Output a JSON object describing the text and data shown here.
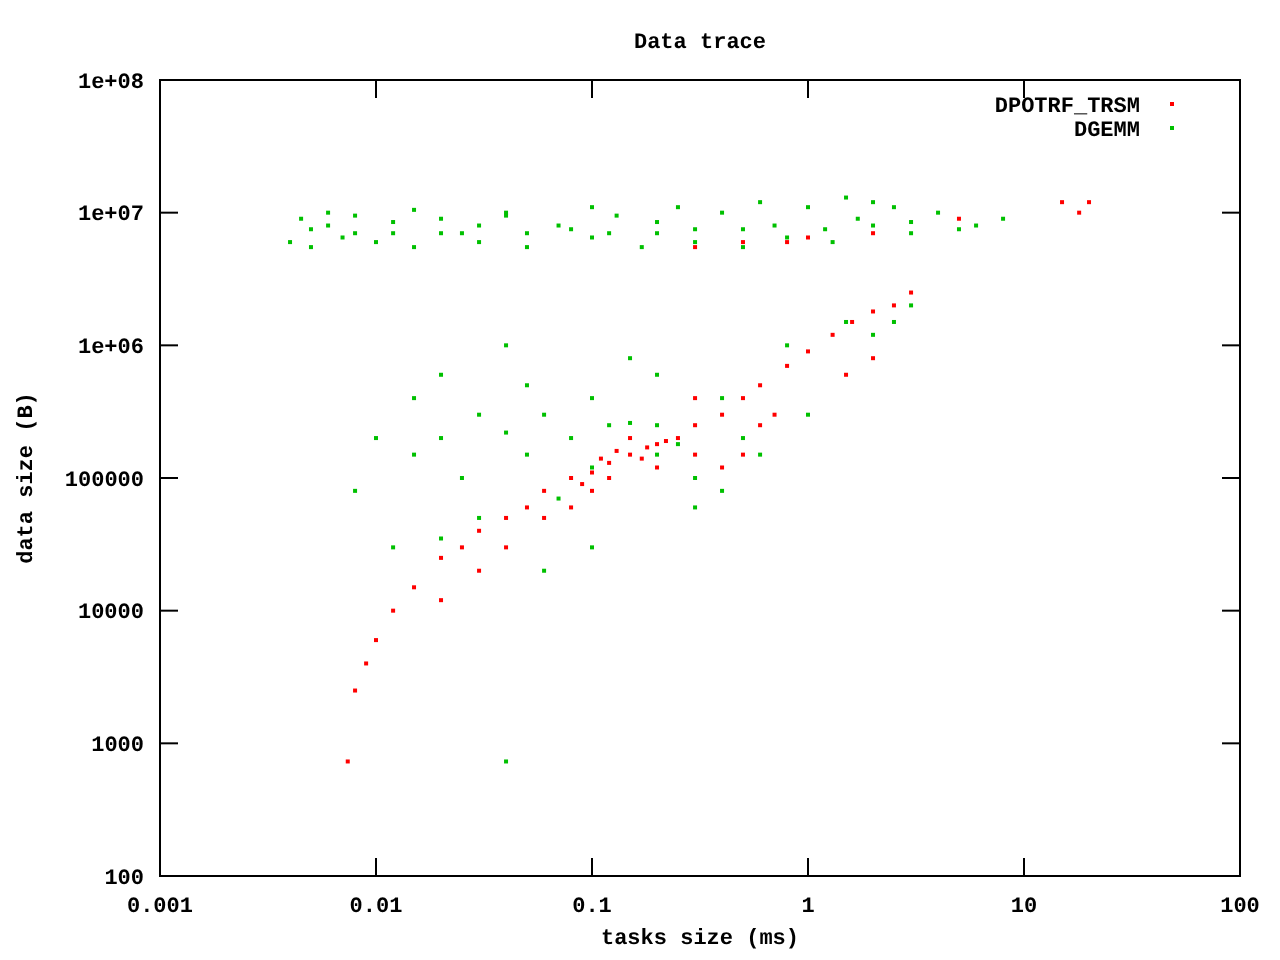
{
  "chart_data": {
    "type": "scatter",
    "title": "Data trace",
    "xlabel": "tasks size (ms)",
    "ylabel": "data size (B)",
    "log": "xy",
    "marker": "square",
    "legend": "top right",
    "grid": false,
    "xlim": [
      0.001,
      100
    ],
    "xticks": [
      0.001,
      0.01,
      0.1,
      1,
      10,
      100
    ],
    "ylim": [
      100,
      100000000
    ],
    "yticks": [
      100,
      1000,
      10000,
      100000,
      {
        "value": 1000000,
        "label": "1e+06"
      },
      {
        "value": 10000000,
        "label": "1e+07"
      },
      {
        "value": 100000000,
        "label": "1e+08"
      }
    ],
    "series": [
      {
        "name": "DPOTRF_TRSM",
        "color": "#ff0000",
        "x": [
          0.0074,
          0.008,
          0.009,
          0.01,
          0.012,
          0.015,
          0.02,
          0.025,
          0.03,
          0.04,
          0.05,
          0.06,
          0.08,
          0.1,
          0.12,
          0.15,
          0.18,
          0.2,
          0.25,
          0.3,
          0.4,
          0.5,
          0.6,
          0.8,
          1,
          1.3,
          1.6,
          2,
          2.5,
          3,
          0.1,
          0.12,
          0.15,
          0.2,
          0.3,
          0.4,
          0.5,
          0.6,
          0.08,
          0.06,
          0.3,
          0.7,
          1.5,
          2,
          0.03,
          0.02,
          0.04,
          0.13,
          0.17,
          0.22,
          0.09,
          0.11,
          0.5,
          1,
          2,
          5,
          15,
          18,
          20,
          0.3,
          0.8
        ],
        "values": [
          730,
          2500,
          4000,
          6000,
          10000,
          15000,
          25000,
          30000,
          40000,
          50000,
          60000,
          80000,
          100000,
          110000,
          130000,
          150000,
          170000,
          180000,
          200000,
          250000,
          300000,
          400000,
          500000,
          700000,
          900000,
          1200000,
          1500000,
          1800000,
          2000000,
          2500000,
          80000,
          100000,
          200000,
          120000,
          150000,
          120000,
          150000,
          250000,
          60000,
          50000,
          400000,
          300000,
          600000,
          800000,
          20000,
          12000,
          30000,
          160000,
          140000,
          190000,
          90000,
          140000,
          6000000,
          6500000,
          7000000,
          9000000,
          12000000,
          10000000,
          12000000,
          5500000,
          6000000
        ]
      },
      {
        "name": "DGEMM",
        "color": "#00c000",
        "x": [
          0.004,
          0.0045,
          0.005,
          0.006,
          0.007,
          0.008,
          0.01,
          0.012,
          0.015,
          0.02,
          0.025,
          0.03,
          0.04,
          0.05,
          0.07,
          0.1,
          0.13,
          0.17,
          0.2,
          0.3,
          0.4,
          0.5,
          0.7,
          1,
          1.3,
          1.7,
          2,
          3,
          4,
          6,
          8,
          0.005,
          0.008,
          0.012,
          0.02,
          0.03,
          0.05,
          0.08,
          0.12,
          0.2,
          0.3,
          0.5,
          0.8,
          1.2,
          2,
          3,
          5,
          0.006,
          0.015,
          0.04,
          0.1,
          0.25,
          0.6,
          1.5,
          2.5,
          0.02,
          0.015,
          0.03,
          0.025,
          0.04,
          0.05,
          0.06,
          0.08,
          0.1,
          0.12,
          0.2,
          0.3,
          0.5,
          0.4,
          0.07,
          0.03,
          0.015,
          0.02,
          0.05,
          0.1,
          0.2,
          0.4,
          0.01,
          0.008,
          0.012,
          0.06,
          0.1,
          0.3,
          0.6,
          1,
          1.5,
          2,
          3,
          2.5,
          0.8,
          0.15,
          0.04,
          0.02,
          0.15,
          0.2,
          0.25,
          0.04
        ],
        "values": [
          6000000,
          9000000,
          5500000,
          8000000,
          6500000,
          9500000,
          6000000,
          8500000,
          5500000,
          9000000,
          7000000,
          6000000,
          9500000,
          5500000,
          8000000,
          6500000,
          9500000,
          5500000,
          8500000,
          6000000,
          10000000,
          5500000,
          8000000,
          11000000,
          6000000,
          9000000,
          12000000,
          7000000,
          10000000,
          8000000,
          9000000,
          7500000,
          7000000,
          7000000,
          7000000,
          8000000,
          7000000,
          7500000,
          7000000,
          7000000,
          7500000,
          7500000,
          6500000,
          7500000,
          8000000,
          8500000,
          7500000,
          10000000,
          10500000,
          10000000,
          11000000,
          11000000,
          12000000,
          13000000,
          11000000,
          200000,
          150000,
          300000,
          100000,
          220000,
          150000,
          300000,
          200000,
          120000,
          250000,
          150000,
          100000,
          200000,
          80000,
          70000,
          50000,
          400000,
          600000,
          500000,
          400000,
          600000,
          400000,
          200000,
          80000,
          30000,
          20000,
          30000,
          60000,
          150000,
          300000,
          1500000,
          1200000,
          2000000,
          1500000,
          1000000,
          800000,
          1000000,
          35000,
          260000,
          250000,
          180000,
          730
        ]
      }
    ]
  }
}
